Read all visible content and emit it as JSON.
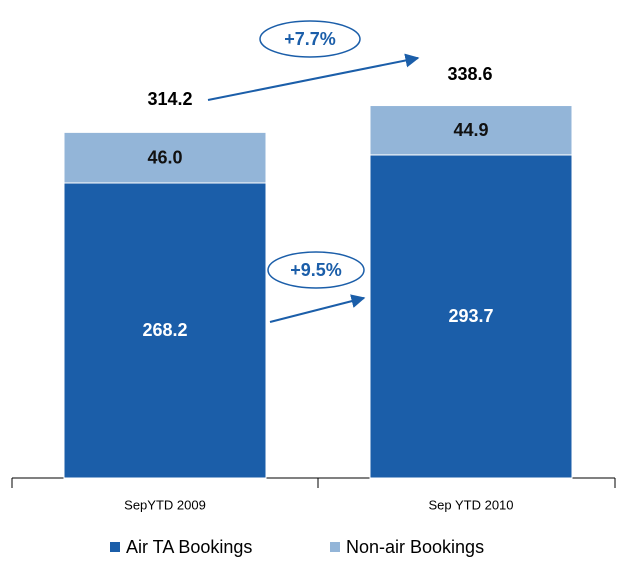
{
  "chart_data": {
    "type": "stacked_bar",
    "categories": [
      "SepYTD 2009",
      "Sep YTD 2010"
    ],
    "series": [
      {
        "name": "Air TA Bookings",
        "color": "#1b5ea9",
        "values": [
          268.2,
          293.7
        ]
      },
      {
        "name": "Non-air Bookings",
        "color": "#93b5d8",
        "values": [
          46,
          44.9
        ],
        "value_labels": [
          "46.0",
          "44.9"
        ]
      }
    ],
    "totals": [
      314.2,
      338.6
    ],
    "annotations": [
      "+7.7%",
      "+9.5%"
    ]
  }
}
